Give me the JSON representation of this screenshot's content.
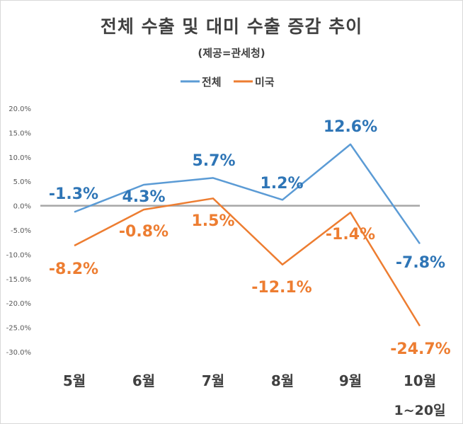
{
  "chart_data": {
    "type": "line",
    "title": "전체 수출 및 대미 수출 증감 추이",
    "subtitle": "(제공=관세청)",
    "categories": [
      "5월",
      "6월",
      "7월",
      "8월",
      "9월",
      "10월"
    ],
    "category_note": "1~20일",
    "series": [
      {
        "name": "전체",
        "color": "#5b9bd5",
        "label_color": "#2e75b6",
        "values": [
          -1.3,
          4.3,
          5.7,
          1.2,
          12.6,
          -7.8
        ],
        "labels": [
          "-1.3%",
          "4.3%",
          "5.7%",
          "1.2%",
          "12.6%",
          "-7.8%"
        ]
      },
      {
        "name": "미국",
        "color": "#ed7d31",
        "label_color": "#ed7d31",
        "values": [
          -8.2,
          -0.8,
          1.5,
          -12.1,
          -1.4,
          -24.7
        ],
        "labels": [
          "-8.2%",
          "-0.8%",
          "1.5%",
          "-12.1%",
          "-1.4%",
          "-24.7%"
        ]
      }
    ],
    "ylim": [
      -30,
      20
    ],
    "yticks": [
      "20.0%",
      "15.0%",
      "10.0%",
      "5.0%",
      "0.0%",
      "-5.0%",
      "-10.0%",
      "-15.0%",
      "-20.0%",
      "-25.0%",
      "-30.0%"
    ],
    "zero_line_color": "#a6a6a6",
    "legend_position": "top-center",
    "grid": false
  }
}
